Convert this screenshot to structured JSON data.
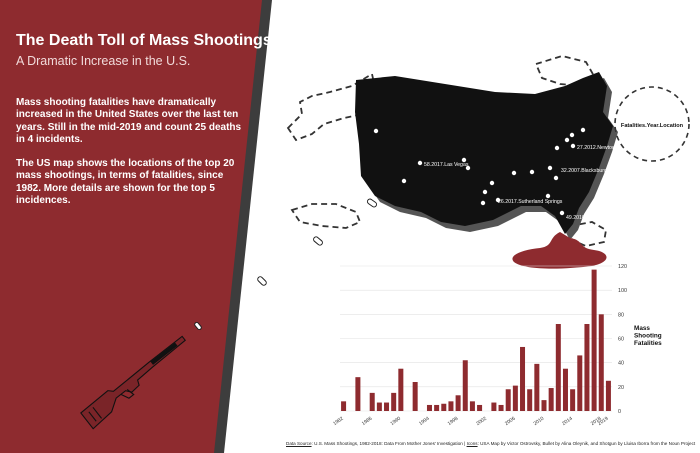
{
  "panel": {
    "title": "The Death Toll of Mass Shootings",
    "subtitle": "A Dramatic Increase in the U.S.",
    "paragraph1": "Mass shooting fatalities have dramatically increased in the United States over the last ten years. Still in the mid-2019 and count 25 deaths in 4 incidents.",
    "paragraph2": "The US map shows the locations of the top 20 mass shootings, in terms of fatalities, since 1982. More details are shown for the top 5 incidences."
  },
  "map": {
    "legend_label": "Fatalities.Year.Location",
    "labels": [
      "58.2017.Las Vegas",
      "27.2012.Newtown",
      "32.2007.Blacksburg",
      "26.2017.Sutherland Springs",
      "49.2016.Orlando"
    ]
  },
  "colors": {
    "panel": "#8e2b2f",
    "bar": "#8e2b2f",
    "map": "#111111"
  },
  "chart_data": {
    "type": "bar",
    "title": "",
    "xlabel": "",
    "ylabel": "Mass Shooting Fatalities",
    "ylim": [
      0,
      120
    ],
    "y_ticks": [
      0,
      20,
      40,
      60,
      80,
      100,
      120
    ],
    "x_tick_labels": [
      "1982",
      "1986",
      "1990",
      "1994",
      "1998",
      "2002",
      "2006",
      "2010",
      "2014",
      "2018",
      "2019"
    ],
    "x": [
      1982,
      1983,
      1984,
      1985,
      1986,
      1987,
      1988,
      1989,
      1990,
      1991,
      1992,
      1993,
      1994,
      1995,
      1996,
      1997,
      1998,
      1999,
      2000,
      2001,
      2002,
      2003,
      2004,
      2005,
      2006,
      2007,
      2008,
      2009,
      2010,
      2011,
      2012,
      2013,
      2014,
      2015,
      2016,
      2017,
      2018,
      2019
    ],
    "values": [
      8,
      0,
      28,
      0,
      15,
      7,
      7,
      15,
      35,
      0,
      24,
      0,
      5,
      5,
      6,
      8,
      13,
      42,
      8,
      5,
      0,
      7,
      5,
      18,
      21,
      53,
      18,
      39,
      9,
      19,
      72,
      35,
      18,
      46,
      72,
      117,
      80,
      25
    ]
  },
  "footer": {
    "source_label": "Data Source",
    "source_text": ": U.S. Mass Shootings, 1982-2018: Data From Mother Jones' Investigation | ",
    "icons_label": "Icons",
    "icons_text": ": USA Map by Victor Ostrovsky, Bullet by Alina Oleynik, and Shotgun by Lluisa Iborra from the Noun Project"
  }
}
